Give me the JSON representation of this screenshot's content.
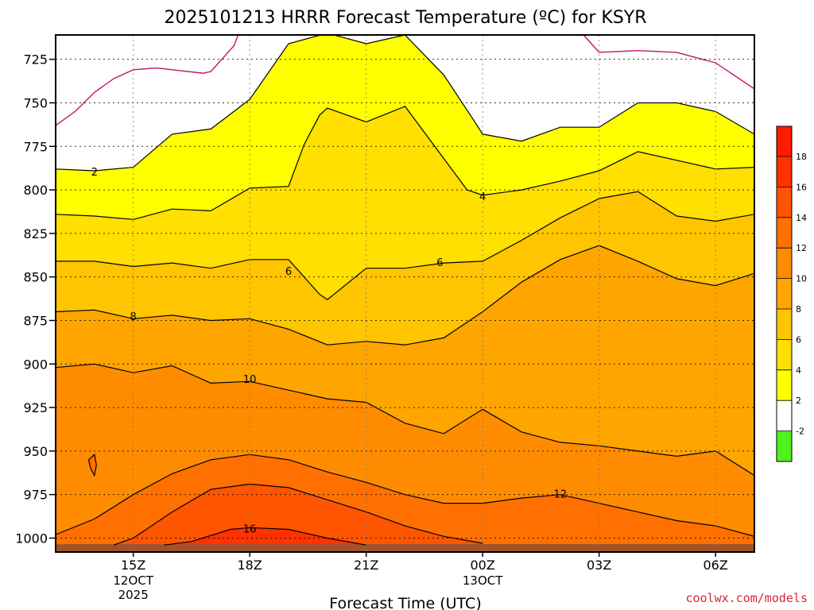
{
  "chart_data": {
    "type": "contour",
    "title": "2025101213 HRRR Forecast Temperature (ºC) for KSYR",
    "xlabel": "Forecast Time (UTC)",
    "ylabel": "",
    "y_axis": "pressure_hPa",
    "y_inverted": true,
    "yticks": [
      725,
      750,
      775,
      800,
      825,
      850,
      875,
      900,
      925,
      950,
      975,
      1000
    ],
    "ylim": [
      1008,
      711
    ],
    "xlim": [
      13,
      31
    ],
    "xticks": [
      {
        "x": 15,
        "label": "15Z",
        "date": "12OCT",
        "year": "2025"
      },
      {
        "x": 18,
        "label": "18Z",
        "date": "",
        "year": ""
      },
      {
        "x": 21,
        "label": "21Z",
        "date": "",
        "year": ""
      },
      {
        "x": 24,
        "label": "00Z",
        "date": "13OCT",
        "year": ""
      },
      {
        "x": 27,
        "label": "03Z",
        "date": "",
        "year": ""
      },
      {
        "x": 30,
        "label": "06Z",
        "date": "",
        "year": ""
      }
    ],
    "grid": true,
    "contour_levels": [
      -2,
      2,
      4,
      6,
      8,
      10,
      12,
      14,
      16
    ],
    "contours": [
      {
        "level": 2,
        "label": "2",
        "label_at": [
          14,
          790
        ],
        "points": [
          [
            13,
            788
          ],
          [
            14,
            789
          ],
          [
            15,
            787
          ],
          [
            16,
            768
          ],
          [
            17,
            765
          ],
          [
            18,
            748
          ],
          [
            19,
            716
          ],
          [
            20,
            710
          ],
          [
            21,
            716
          ],
          [
            22,
            711
          ],
          [
            23,
            734
          ],
          [
            23.8,
            761
          ],
          [
            24,
            768
          ],
          [
            25,
            772
          ],
          [
            26,
            764
          ],
          [
            27,
            764
          ],
          [
            28,
            750
          ],
          [
            29,
            750
          ],
          [
            30,
            755
          ],
          [
            31,
            768
          ]
        ]
      },
      {
        "level": 4,
        "label": "4",
        "label_at": [
          24,
          804
        ],
        "points": [
          [
            13,
            814
          ],
          [
            14,
            815
          ],
          [
            15,
            817
          ],
          [
            16,
            811
          ],
          [
            17,
            812
          ],
          [
            18,
            799
          ],
          [
            19,
            798
          ],
          [
            19.4,
            774
          ],
          [
            19.8,
            757
          ],
          [
            20,
            753
          ],
          [
            21,
            761
          ],
          [
            22,
            752
          ],
          [
            23,
            782
          ],
          [
            23.6,
            800
          ],
          [
            24,
            803
          ],
          [
            25,
            800
          ],
          [
            26,
            795
          ],
          [
            27,
            789
          ],
          [
            28,
            778
          ],
          [
            29,
            783
          ],
          [
            30,
            788
          ],
          [
            31,
            787
          ]
        ]
      },
      {
        "level": 6,
        "label": "6",
        "label_at": [
          19,
          847
        ],
        "points": [
          [
            13,
            841
          ],
          [
            14,
            841
          ],
          [
            15,
            844
          ],
          [
            16,
            842
          ],
          [
            17,
            845
          ],
          [
            18,
            840
          ],
          [
            19,
            840
          ],
          [
            19.8,
            860
          ],
          [
            20,
            863
          ],
          [
            21,
            845
          ],
          [
            22,
            845
          ],
          [
            23,
            842
          ],
          [
            24,
            841
          ],
          [
            25,
            829
          ],
          [
            26,
            816
          ],
          [
            27,
            805
          ],
          [
            28,
            801
          ],
          [
            29,
            815
          ],
          [
            30,
            818
          ],
          [
            31,
            814
          ]
        ]
      },
      {
        "level": 6,
        "label": "6",
        "label_at": [
          22.9,
          842
        ],
        "points": []
      },
      {
        "level": 8,
        "label": "8",
        "label_at": [
          15,
          873
        ],
        "points": [
          [
            13,
            870
          ],
          [
            14,
            869
          ],
          [
            15,
            874
          ],
          [
            16,
            872
          ],
          [
            17,
            875
          ],
          [
            18,
            874
          ],
          [
            19,
            880
          ],
          [
            20,
            889
          ],
          [
            21,
            887
          ],
          [
            22,
            889
          ],
          [
            23,
            885
          ],
          [
            24,
            870
          ],
          [
            25,
            853
          ],
          [
            26,
            840
          ],
          [
            27,
            832
          ],
          [
            28,
            841
          ],
          [
            29,
            851
          ],
          [
            30,
            855
          ],
          [
            31,
            848
          ]
        ]
      },
      {
        "level": 10,
        "label": "10",
        "label_at": [
          18,
          909
        ],
        "points": [
          [
            13,
            902
          ],
          [
            14,
            900
          ],
          [
            15,
            905
          ],
          [
            16,
            901
          ],
          [
            17,
            911
          ],
          [
            18,
            910
          ],
          [
            19,
            915
          ],
          [
            20,
            920
          ],
          [
            21,
            922
          ],
          [
            22,
            934
          ],
          [
            23,
            940
          ],
          [
            24,
            926
          ],
          [
            25,
            939
          ],
          [
            26,
            945
          ],
          [
            27,
            947
          ],
          [
            28,
            950
          ],
          [
            29,
            953
          ],
          [
            30,
            950
          ],
          [
            31,
            964
          ]
        ]
      },
      {
        "level": 12,
        "label": "12",
        "label_at": [
          26,
          975
        ],
        "points": [
          [
            13,
            998
          ],
          [
            14,
            989
          ],
          [
            15,
            975
          ],
          [
            16,
            963
          ],
          [
            17,
            955
          ],
          [
            18,
            952
          ],
          [
            19,
            955
          ],
          [
            20,
            962
          ],
          [
            21,
            968
          ],
          [
            22,
            975
          ],
          [
            23,
            980
          ],
          [
            24,
            980
          ],
          [
            25,
            977
          ],
          [
            26,
            975
          ],
          [
            27,
            980
          ],
          [
            28,
            985
          ],
          [
            29,
            990
          ],
          [
            30,
            993
          ],
          [
            31,
            999
          ]
        ]
      },
      {
        "level": 14,
        "label": "",
        "label_at": [],
        "points": [
          [
            14.5,
            1004
          ],
          [
            15,
            1000
          ],
          [
            16,
            985
          ],
          [
            17,
            972
          ],
          [
            18,
            969
          ],
          [
            19,
            971
          ],
          [
            20,
            978
          ],
          [
            21,
            985
          ],
          [
            22,
            993
          ],
          [
            23,
            999
          ],
          [
            24,
            1003
          ]
        ]
      },
      {
        "level": 16,
        "label": "16",
        "label_at": [
          18,
          995
        ],
        "points": [
          [
            15.8,
            1004
          ],
          [
            16.5,
            1002
          ],
          [
            17.5,
            995
          ],
          [
            18,
            994
          ],
          [
            19,
            995
          ],
          [
            20,
            1000
          ],
          [
            21,
            1004
          ]
        ]
      },
      {
        "level": 12,
        "label": "",
        "label_at": [],
        "closed": true,
        "points": [
          [
            13.85,
            955
          ],
          [
            14,
            952
          ],
          [
            14.05,
            958
          ],
          [
            14,
            964
          ],
          [
            13.9,
            960
          ]
        ]
      }
    ],
    "colorbar": {
      "ticks": [
        -2,
        2,
        4,
        6,
        8,
        10,
        12,
        14,
        16,
        18
      ],
      "colors": {
        "below_-2": "#4ef21f",
        "-2_2": "#ffffff",
        "2_4": "#ffff00",
        "4_6": "#ffe000",
        "6_8": "#ffc500",
        "8_10": "#ffa500",
        "10_12": "#ff8c00",
        "12_14": "#ff7000",
        "14_16": "#ff5500",
        "16_18": "#ff3200",
        "above_18": "#ff1a00"
      }
    },
    "surface_color": "#a0522d"
  },
  "credit": "coolwx.com/models",
  "credit_color": "#e0223a",
  "contour_line_color_cold": "#c0146e"
}
